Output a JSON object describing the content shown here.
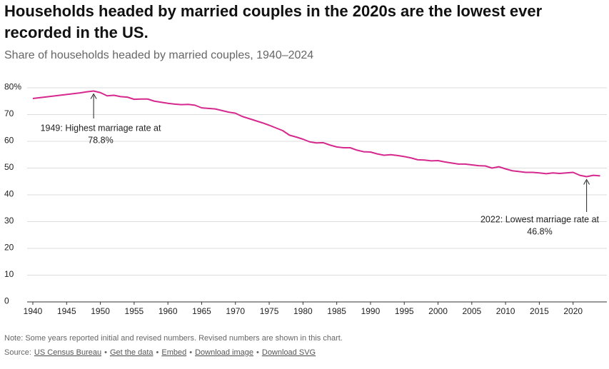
{
  "chart_data": {
    "type": "line",
    "title": [
      "Households headed by married couples in the 2020s are the lowest ever",
      "recorded in the US."
    ],
    "subtitle": "Share of households headed by married couples, 1940–2024",
    "x": [
      1940,
      1941,
      1942,
      1943,
      1944,
      1945,
      1946,
      1947,
      1948,
      1949,
      1950,
      1951,
      1952,
      1953,
      1954,
      1955,
      1956,
      1957,
      1958,
      1959,
      1960,
      1961,
      1962,
      1963,
      1964,
      1965,
      1966,
      1967,
      1968,
      1969,
      1970,
      1971,
      1972,
      1973,
      1974,
      1975,
      1976,
      1977,
      1978,
      1979,
      1980,
      1981,
      1982,
      1983,
      1984,
      1985,
      1986,
      1987,
      1988,
      1989,
      1990,
      1991,
      1992,
      1993,
      1994,
      1995,
      1996,
      1997,
      1998,
      1999,
      2000,
      2001,
      2002,
      2003,
      2004,
      2005,
      2006,
      2007,
      2008,
      2009,
      2010,
      2011,
      2012,
      2013,
      2014,
      2015,
      2016,
      2017,
      2018,
      2019,
      2020,
      2021,
      2022,
      2023,
      2024
    ],
    "series": [
      {
        "name": "Share of households headed by married couples",
        "color": "#d6298e",
        "values": [
          76,
          76.3,
          76.6,
          76.9,
          77.2,
          77.5,
          77.8,
          78.1,
          78.5,
          78.8,
          78.2,
          77.0,
          77.2,
          76.7,
          76.5,
          75.7,
          75.8,
          75.8,
          75.0,
          74.6,
          74.2,
          73.9,
          73.7,
          73.8,
          73.5,
          72.5,
          72.3,
          72.1,
          71.5,
          70.9,
          70.5,
          69.3,
          68.5,
          67.7,
          66.9,
          66.0,
          65.0,
          64.0,
          62.3,
          61.6,
          60.8,
          59.8,
          59.4,
          59.5,
          58.6,
          57.9,
          57.6,
          57.6,
          56.7,
          56.1,
          56.0,
          55.3,
          54.8,
          55.0,
          54.7,
          54.3,
          53.8,
          53.1,
          53.0,
          52.7,
          52.8,
          52.3,
          51.9,
          51.5,
          51.5,
          51.2,
          50.9,
          50.8,
          50.0,
          50.5,
          49.7,
          49.0,
          48.7,
          48.4,
          48.4,
          48.2,
          47.9,
          48.2,
          48.0,
          48.2,
          48.4,
          47.3,
          46.8,
          47.3,
          47.1
        ]
      }
    ],
    "xlim": [
      1940,
      2025
    ],
    "xticks": [
      1940,
      1945,
      1950,
      1955,
      1960,
      1965,
      1970,
      1975,
      1980,
      1985,
      1990,
      1995,
      2000,
      2005,
      2010,
      2015,
      2020
    ],
    "ylim": [
      0,
      80
    ],
    "yticks": [
      0,
      10,
      20,
      30,
      40,
      50,
      60,
      70,
      {
        "value": 80,
        "label": "80%"
      }
    ],
    "grid": true,
    "annotations": [
      {
        "text": [
          "1949: Highest marriage rate at",
          "78.8%"
        ]
      },
      {
        "text": [
          "2022: Lowest marriage rate at",
          "46.8%"
        ]
      }
    ],
    "note": "Note: Some years reported initial and revised numbers. Revised numbers are shown in this chart.",
    "source_label": "Source:",
    "separator": "•",
    "links": [
      "US Census Bureau",
      "Get the data",
      "Embed",
      "Download image",
      "Download SVG"
    ]
  }
}
